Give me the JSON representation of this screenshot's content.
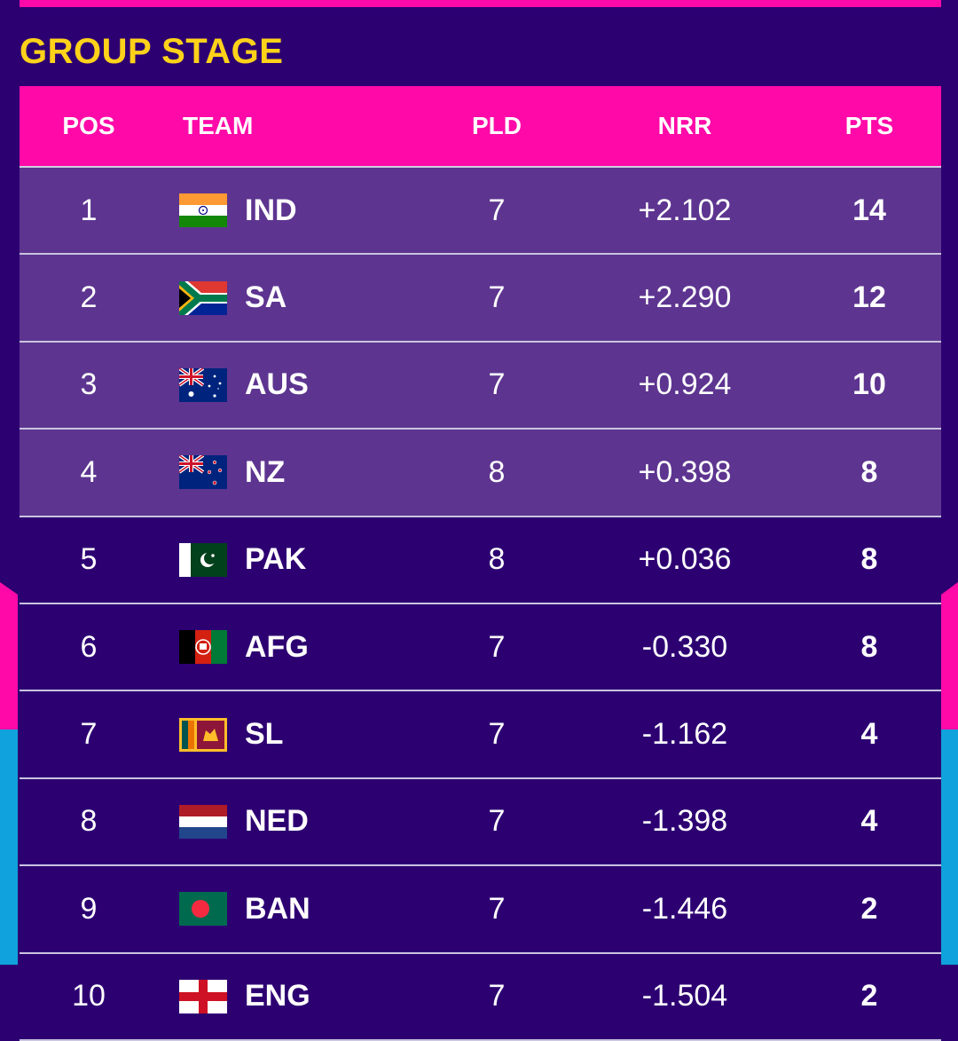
{
  "section_title": "GROUP STAGE",
  "columns": {
    "pos": "POS",
    "team": "TEAM",
    "pld": "PLD",
    "nrr": "NRR",
    "pts": "PTS"
  },
  "colors": {
    "accent_pink": "#ff0aa8",
    "accent_blue": "#10a2dc",
    "title_yellow": "#ffd21a",
    "qualified_row": "#5d3590",
    "background": "#2d0072"
  },
  "rows": [
    {
      "pos": "1",
      "flag": "india-flag-icon",
      "team": "IND",
      "pld": "7",
      "nrr": "+2.102",
      "pts": "14",
      "qualified": true
    },
    {
      "pos": "2",
      "flag": "south-africa-flag-icon",
      "team": "SA",
      "pld": "7",
      "nrr": "+2.290",
      "pts": "12",
      "qualified": true
    },
    {
      "pos": "3",
      "flag": "australia-flag-icon",
      "team": "AUS",
      "pld": "7",
      "nrr": "+0.924",
      "pts": "10",
      "qualified": true
    },
    {
      "pos": "4",
      "flag": "new-zealand-flag-icon",
      "team": "NZ",
      "pld": "8",
      "nrr": "+0.398",
      "pts": "8",
      "qualified": true
    },
    {
      "pos": "5",
      "flag": "pakistan-flag-icon",
      "team": "PAK",
      "pld": "8",
      "nrr": "+0.036",
      "pts": "8",
      "qualified": false
    },
    {
      "pos": "6",
      "flag": "afghanistan-flag-icon",
      "team": "AFG",
      "pld": "7",
      "nrr": "-0.330",
      "pts": "8",
      "qualified": false
    },
    {
      "pos": "7",
      "flag": "sri-lanka-flag-icon",
      "team": "SL",
      "pld": "7",
      "nrr": "-1.162",
      "pts": "4",
      "qualified": false
    },
    {
      "pos": "8",
      "flag": "netherlands-flag-icon",
      "team": "NED",
      "pld": "7",
      "nrr": "-1.398",
      "pts": "4",
      "qualified": false
    },
    {
      "pos": "9",
      "flag": "bangladesh-flag-icon",
      "team": "BAN",
      "pld": "7",
      "nrr": "-1.446",
      "pts": "2",
      "qualified": false
    },
    {
      "pos": "10",
      "flag": "england-flag-icon",
      "team": "ENG",
      "pld": "7",
      "nrr": "-1.504",
      "pts": "2",
      "qualified": false
    }
  ]
}
